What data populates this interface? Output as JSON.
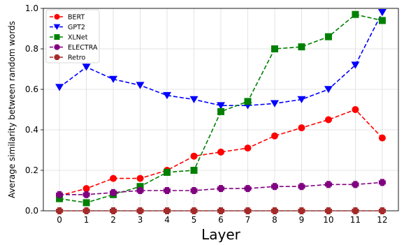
{
  "chart_data": {
    "type": "line",
    "title": "",
    "xlabel": "Layer",
    "ylabel": "Average similarity between random words",
    "x": [
      0,
      1,
      2,
      3,
      4,
      5,
      6,
      7,
      8,
      9,
      10,
      11,
      12
    ],
    "xticks": [
      "0",
      "1",
      "2",
      "3",
      "4",
      "5",
      "6",
      "7",
      "8",
      "9",
      "10",
      "11",
      "12"
    ],
    "xlim": [
      -0.6,
      12.6
    ],
    "ylim": [
      0.0,
      1.0
    ],
    "yticks": [
      "0.0",
      "0.2",
      "0.4",
      "0.6",
      "0.8",
      "1.0"
    ],
    "grid": true,
    "legend_position": "top-left",
    "series": [
      {
        "name": "BERT",
        "color": "#ff0000",
        "marker": "circle",
        "values": [
          0.075,
          0.11,
          0.16,
          0.16,
          0.2,
          0.27,
          0.29,
          0.31,
          0.37,
          0.41,
          0.45,
          0.5,
          0.36
        ]
      },
      {
        "name": "GPT2",
        "color": "#0000ff",
        "marker": "triangle-down",
        "values": [
          0.61,
          0.71,
          0.65,
          0.62,
          0.57,
          0.55,
          0.52,
          0.52,
          0.53,
          0.55,
          0.6,
          0.72,
          0.98
        ]
      },
      {
        "name": "XLNet",
        "color": "#008000",
        "marker": "square",
        "values": [
          0.06,
          0.04,
          0.08,
          0.12,
          0.19,
          0.2,
          0.49,
          0.54,
          0.8,
          0.81,
          0.86,
          0.97,
          0.94
        ]
      },
      {
        "name": "ELECTRA",
        "color": "#800080",
        "marker": "plus",
        "values": [
          0.08,
          0.08,
          0.09,
          0.1,
          0.1,
          0.1,
          0.11,
          0.11,
          0.12,
          0.12,
          0.13,
          0.13,
          0.14
        ]
      },
      {
        "name": "Retro",
        "color": "#a52a2a",
        "marker": "plus",
        "values": [
          0.0,
          0.0,
          0.0,
          0.0,
          0.0,
          0.0,
          0.0,
          0.0,
          0.0,
          0.0,
          0.0,
          0.0,
          0.0
        ]
      }
    ]
  }
}
